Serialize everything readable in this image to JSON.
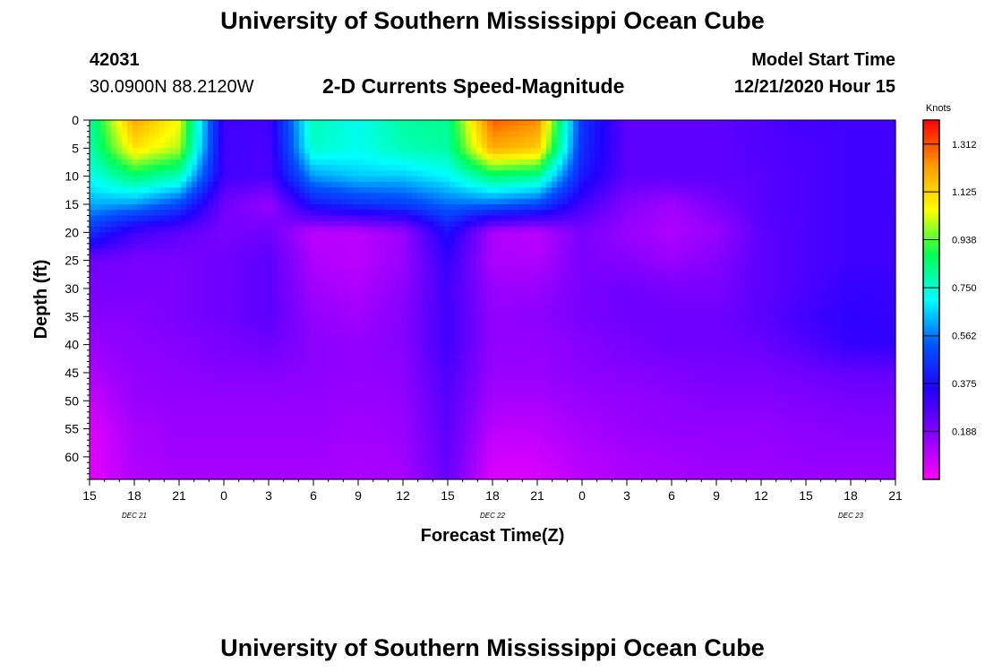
{
  "header": {
    "title": "University of Southern Mississippi Ocean Cube",
    "station_id": "42031",
    "station_coords": "30.0900N 88.2120W",
    "plot_title": "2-D Currents Speed-Magnitude",
    "model_label": "Model Start Time",
    "model_time": "12/21/2020 Hour 15"
  },
  "footer": {
    "title": "University of Southern Mississippi Ocean Cube"
  },
  "chart_data": {
    "type": "heatmap",
    "xlabel": "Forecast Time(Z)",
    "ylabel": "Depth (ft)",
    "x_tick_labels": [
      "15",
      "18",
      "21",
      "0",
      "3",
      "6",
      "9",
      "12",
      "15",
      "18",
      "21",
      "0",
      "3",
      "6",
      "9",
      "12",
      "15",
      "18",
      "21"
    ],
    "date_labels": [
      "DEC 21",
      "DEC 22",
      "DEC 23"
    ],
    "y_tick_labels": [
      "0",
      "5",
      "10",
      "15",
      "20",
      "25",
      "30",
      "35",
      "40",
      "45",
      "50",
      "55",
      "60"
    ],
    "ylim": [
      0,
      64
    ],
    "y_reversed": true,
    "colorbar": {
      "unit": "Knots",
      "range": [
        0,
        1.406
      ],
      "tick_labels": [
        "1.312",
        "1.125",
        "0.938",
        "0.750",
        "0.562",
        "0.375",
        "0.188"
      ],
      "colors": [
        "#ff00ff",
        "#8800ff",
        "#2200ff",
        "#0055ff",
        "#00ffff",
        "#00ff55",
        "#ffff00",
        "#ff9900",
        "#ff0000"
      ]
    },
    "hours_from_start": [
      0,
      3,
      6,
      9,
      12,
      15,
      18,
      21,
      24,
      27,
      30,
      33,
      36,
      39,
      42,
      45,
      48,
      51,
      54
    ],
    "depth_ft": [
      0,
      5,
      10,
      15,
      20,
      25,
      30,
      35,
      40,
      45,
      50,
      55,
      60,
      64
    ],
    "speed_knots": [
      [
        0.8,
        1.2,
        1.05,
        0.3,
        0.3,
        0.78,
        0.72,
        0.8,
        0.82,
        1.3,
        1.25,
        0.45,
        0.25,
        0.25,
        0.25,
        0.27,
        0.3,
        0.3,
        0.3
      ],
      [
        0.78,
        1.1,
        1.0,
        0.3,
        0.28,
        0.76,
        0.72,
        0.78,
        0.8,
        1.2,
        1.15,
        0.44,
        0.25,
        0.25,
        0.25,
        0.27,
        0.28,
        0.3,
        0.3
      ],
      [
        0.72,
        0.85,
        0.78,
        0.3,
        0.28,
        0.6,
        0.65,
        0.65,
        0.7,
        0.85,
        0.82,
        0.4,
        0.25,
        0.25,
        0.25,
        0.26,
        0.28,
        0.3,
        0.3
      ],
      [
        0.62,
        0.6,
        0.5,
        0.22,
        0.15,
        0.4,
        0.45,
        0.48,
        0.55,
        0.55,
        0.5,
        0.3,
        0.18,
        0.14,
        0.2,
        0.26,
        0.28,
        0.3,
        0.3
      ],
      [
        0.45,
        0.3,
        0.25,
        0.2,
        0.22,
        0.1,
        0.1,
        0.15,
        0.38,
        0.12,
        0.1,
        0.2,
        0.15,
        0.12,
        0.15,
        0.25,
        0.28,
        0.3,
        0.3
      ],
      [
        0.22,
        0.2,
        0.2,
        0.22,
        0.25,
        0.12,
        0.1,
        0.15,
        0.32,
        0.12,
        0.12,
        0.2,
        0.18,
        0.15,
        0.18,
        0.25,
        0.28,
        0.3,
        0.3
      ],
      [
        0.2,
        0.2,
        0.2,
        0.22,
        0.25,
        0.14,
        0.12,
        0.17,
        0.3,
        0.15,
        0.15,
        0.2,
        0.22,
        0.2,
        0.2,
        0.25,
        0.28,
        0.32,
        0.32
      ],
      [
        0.18,
        0.18,
        0.2,
        0.22,
        0.25,
        0.16,
        0.14,
        0.18,
        0.3,
        0.16,
        0.17,
        0.2,
        0.22,
        0.22,
        0.22,
        0.25,
        0.3,
        0.33,
        0.32
      ],
      [
        0.15,
        0.17,
        0.18,
        0.2,
        0.22,
        0.17,
        0.16,
        0.18,
        0.3,
        0.16,
        0.16,
        0.18,
        0.2,
        0.22,
        0.22,
        0.23,
        0.27,
        0.32,
        0.33
      ],
      [
        0.12,
        0.16,
        0.17,
        0.18,
        0.18,
        0.17,
        0.16,
        0.17,
        0.28,
        0.15,
        0.15,
        0.17,
        0.18,
        0.19,
        0.2,
        0.2,
        0.22,
        0.24,
        0.24
      ],
      [
        0.08,
        0.15,
        0.16,
        0.16,
        0.16,
        0.16,
        0.15,
        0.16,
        0.26,
        0.13,
        0.13,
        0.15,
        0.16,
        0.17,
        0.18,
        0.18,
        0.19,
        0.2,
        0.2
      ],
      [
        0.05,
        0.13,
        0.15,
        0.15,
        0.15,
        0.15,
        0.14,
        0.15,
        0.25,
        0.1,
        0.1,
        0.13,
        0.15,
        0.16,
        0.16,
        0.16,
        0.17,
        0.18,
        0.18
      ],
      [
        0.04,
        0.12,
        0.14,
        0.14,
        0.14,
        0.14,
        0.13,
        0.14,
        0.24,
        0.07,
        0.07,
        0.11,
        0.13,
        0.14,
        0.15,
        0.15,
        0.16,
        0.16,
        0.16
      ],
      [
        0.04,
        0.11,
        0.13,
        0.13,
        0.13,
        0.13,
        0.12,
        0.13,
        0.23,
        0.05,
        0.06,
        0.1,
        0.12,
        0.13,
        0.14,
        0.14,
        0.15,
        0.15,
        0.15
      ]
    ]
  }
}
